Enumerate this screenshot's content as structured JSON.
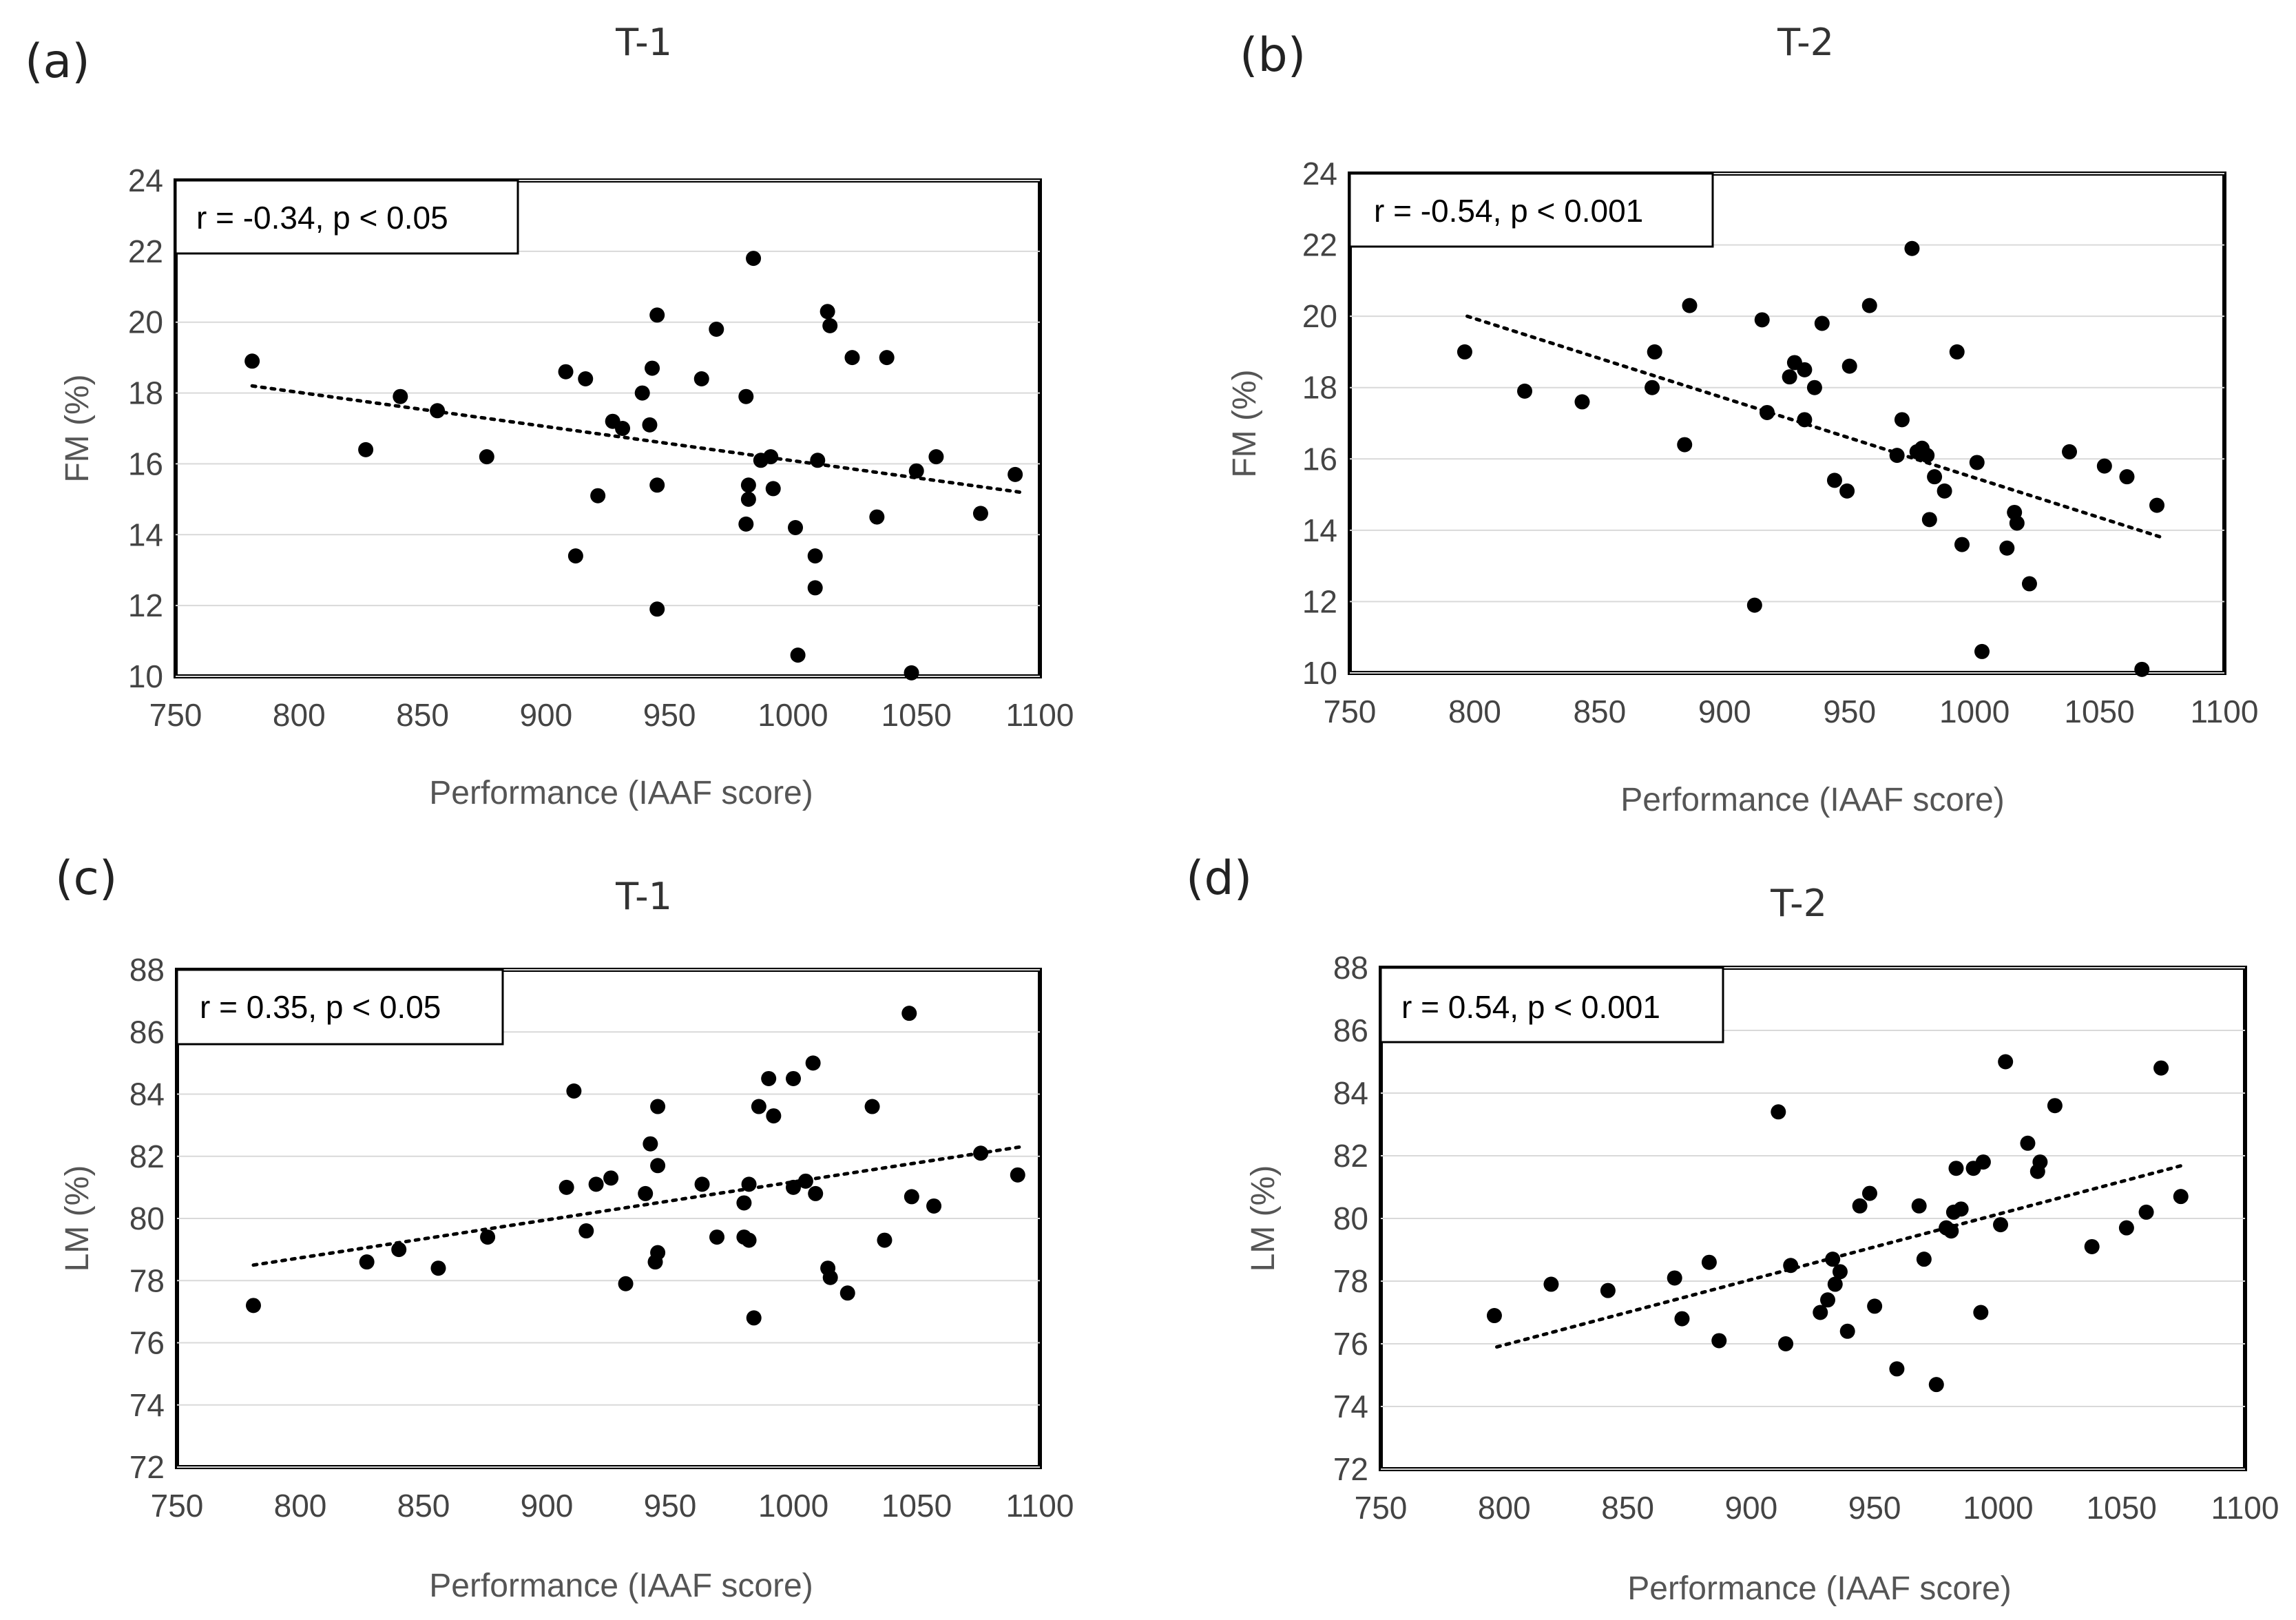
{
  "chart_data": [
    {
      "panel": "(a)",
      "type": "scatter",
      "title": "T-1",
      "xlabel": "Performance (IAAF score)",
      "ylabel": "FM (%)",
      "annotation": "r = -0.34, p < 0.05",
      "xlim": [
        750,
        1100
      ],
      "ylim": [
        10,
        24
      ],
      "xticks": [
        "750",
        "800",
        "850",
        "900",
        "950",
        "1000",
        "1050",
        "1100"
      ],
      "yticks": [
        "10",
        "12",
        "14",
        "16",
        "18",
        "20",
        "22",
        "24"
      ],
      "trendline": {
        "style": "dotted",
        "x": [
          781,
          1092
        ],
        "y": [
          18.2,
          15.2
        ]
      },
      "points": [
        [
          781,
          18.9
        ],
        [
          827,
          16.4
        ],
        [
          841,
          17.9
        ],
        [
          856,
          17.5
        ],
        [
          876,
          16.2
        ],
        [
          908,
          18.6
        ],
        [
          912,
          13.4
        ],
        [
          916,
          18.4
        ],
        [
          921,
          15.1
        ],
        [
          927,
          17.2
        ],
        [
          931,
          17.0
        ],
        [
          939,
          18.0
        ],
        [
          942,
          17.1
        ],
        [
          943,
          18.7
        ],
        [
          945,
          20.2
        ],
        [
          945,
          15.4
        ],
        [
          945,
          11.9
        ],
        [
          963,
          18.4
        ],
        [
          969,
          19.8
        ],
        [
          981,
          17.9
        ],
        [
          981,
          14.3
        ],
        [
          982,
          15.0
        ],
        [
          982,
          15.4
        ],
        [
          984,
          21.8
        ],
        [
          987,
          16.1
        ],
        [
          991,
          16.2
        ],
        [
          992,
          15.3
        ],
        [
          1001,
          14.2
        ],
        [
          1002,
          10.6
        ],
        [
          1009,
          13.4
        ],
        [
          1009,
          12.5
        ],
        [
          1010,
          16.1
        ],
        [
          1014,
          20.3
        ],
        [
          1015,
          19.9
        ],
        [
          1024,
          19.0
        ],
        [
          1034,
          14.5
        ],
        [
          1038,
          19.0
        ],
        [
          1048,
          10.1
        ],
        [
          1050,
          15.8
        ],
        [
          1058,
          16.2
        ],
        [
          1076,
          14.6
        ],
        [
          1090,
          15.7
        ]
      ]
    },
    {
      "panel": "(b)",
      "type": "scatter",
      "title": "T-2",
      "xlabel": "Performance (IAAF score)",
      "ylabel": "FM (%)",
      "annotation": "r = -0.54, p < 0.001",
      "xlim": [
        750,
        1100
      ],
      "ylim": [
        10,
        24
      ],
      "xticks": [
        "750",
        "800",
        "850",
        "900",
        "950",
        "1000",
        "1050",
        "1100"
      ],
      "yticks": [
        "10",
        "12",
        "14",
        "16",
        "18",
        "20",
        "22",
        "24"
      ],
      "trendline": {
        "style": "dotted",
        "x": [
          797,
          1075
        ],
        "y": [
          20.0,
          13.8
        ]
      },
      "points": [
        [
          796,
          19.0
        ],
        [
          820,
          17.9
        ],
        [
          843,
          17.6
        ],
        [
          871,
          18.0
        ],
        [
          872,
          19.0
        ],
        [
          884,
          16.4
        ],
        [
          886,
          20.3
        ],
        [
          912,
          11.9
        ],
        [
          915,
          19.9
        ],
        [
          917,
          17.3
        ],
        [
          926,
          18.3
        ],
        [
          928,
          18.7
        ],
        [
          932,
          17.1
        ],
        [
          932,
          18.5
        ],
        [
          936,
          18.0
        ],
        [
          939,
          19.8
        ],
        [
          944,
          15.4
        ],
        [
          949,
          15.1
        ],
        [
          950,
          18.6
        ],
        [
          958,
          20.3
        ],
        [
          969,
          16.1
        ],
        [
          971,
          17.1
        ],
        [
          975,
          21.9
        ],
        [
          977,
          16.2
        ],
        [
          979,
          16.3
        ],
        [
          981,
          16.1
        ],
        [
          982,
          14.3
        ],
        [
          984,
          15.5
        ],
        [
          988,
          15.1
        ],
        [
          993,
          19.0
        ],
        [
          995,
          13.6
        ],
        [
          1001,
          15.9
        ],
        [
          1003,
          10.6
        ],
        [
          1013,
          13.5
        ],
        [
          1016,
          14.5
        ],
        [
          1017,
          14.2
        ],
        [
          1022,
          12.5
        ],
        [
          1038,
          16.2
        ],
        [
          1052,
          15.8
        ],
        [
          1061,
          15.5
        ],
        [
          1067,
          10.1
        ],
        [
          1073,
          14.7
        ]
      ]
    },
    {
      "panel": "(c)",
      "type": "scatter",
      "title": "T-1",
      "xlabel": "Performance (IAAF score)",
      "ylabel": "LM (%)",
      "annotation": "r = 0.35, p < 0.05",
      "xlim": [
        750,
        1100
      ],
      "ylim": [
        72,
        88
      ],
      "xticks": [
        "750",
        "800",
        "850",
        "900",
        "950",
        "1000",
        "1050",
        "1100"
      ],
      "yticks": [
        "72",
        "74",
        "76",
        "78",
        "80",
        "82",
        "84",
        "86",
        "88"
      ],
      "trendline": {
        "style": "dotted",
        "x": [
          781,
          1092
        ],
        "y": [
          78.5,
          82.3
        ]
      },
      "points": [
        [
          781,
          77.2
        ],
        [
          827,
          78.6
        ],
        [
          840,
          79.0
        ],
        [
          856,
          78.4
        ],
        [
          876,
          79.4
        ],
        [
          908,
          81.0
        ],
        [
          911,
          84.1
        ],
        [
          916,
          79.6
        ],
        [
          920,
          81.1
        ],
        [
          926,
          81.3
        ],
        [
          932,
          77.9
        ],
        [
          940,
          80.8
        ],
        [
          942,
          82.4
        ],
        [
          944,
          78.6
        ],
        [
          945,
          83.6
        ],
        [
          945,
          81.7
        ],
        [
          945,
          78.9
        ],
        [
          963,
          81.1
        ],
        [
          969,
          79.4
        ],
        [
          980,
          80.5
        ],
        [
          980,
          79.4
        ],
        [
          982,
          81.1
        ],
        [
          982,
          79.3
        ],
        [
          984,
          76.8
        ],
        [
          986,
          83.6
        ],
        [
          990,
          84.5
        ],
        [
          992,
          83.3
        ],
        [
          1000,
          84.5
        ],
        [
          1000,
          81.0
        ],
        [
          1005,
          81.2
        ],
        [
          1008,
          85.0
        ],
        [
          1009,
          80.8
        ],
        [
          1014,
          78.4
        ],
        [
          1015,
          78.1
        ],
        [
          1022,
          77.6
        ],
        [
          1032,
          83.6
        ],
        [
          1037,
          79.3
        ],
        [
          1047,
          86.6
        ],
        [
          1048,
          80.7
        ],
        [
          1057,
          80.4
        ],
        [
          1076,
          82.1
        ],
        [
          1091,
          81.4
        ]
      ]
    },
    {
      "panel": "(d)",
      "type": "scatter",
      "title": "T-2",
      "xlabel": "Performance (IAAF score)",
      "ylabel": "LM (%)",
      "annotation": "r = 0.54, p < 0.001",
      "xlim": [
        750,
        1100
      ],
      "ylim": [
        72,
        88
      ],
      "xticks": [
        "750",
        "800",
        "850",
        "900",
        "950",
        "1000",
        "1050",
        "1100"
      ],
      "yticks": [
        "72",
        "74",
        "76",
        "78",
        "80",
        "82",
        "84",
        "86",
        "88"
      ],
      "trendline": {
        "style": "dotted",
        "x": [
          797,
          1075
        ],
        "y": [
          75.9,
          81.7
        ]
      },
      "points": [
        [
          796,
          76.9
        ],
        [
          819,
          77.9
        ],
        [
          842,
          77.7
        ],
        [
          869,
          78.1
        ],
        [
          872,
          76.8
        ],
        [
          883,
          78.6
        ],
        [
          887,
          76.1
        ],
        [
          911,
          83.4
        ],
        [
          914,
          76.0
        ],
        [
          916,
          78.5
        ],
        [
          928,
          77.0
        ],
        [
          931,
          77.4
        ],
        [
          933,
          78.7
        ],
        [
          934,
          77.9
        ],
        [
          936,
          78.3
        ],
        [
          939,
          76.4
        ],
        [
          944,
          80.4
        ],
        [
          948,
          80.8
        ],
        [
          950,
          77.2
        ],
        [
          959,
          75.2
        ],
        [
          968,
          80.4
        ],
        [
          970,
          78.7
        ],
        [
          975,
          74.7
        ],
        [
          979,
          79.7
        ],
        [
          981,
          79.6
        ],
        [
          982,
          80.2
        ],
        [
          983,
          81.6
        ],
        [
          985,
          80.3
        ],
        [
          990,
          81.6
        ],
        [
          993,
          77.0
        ],
        [
          994,
          81.8
        ],
        [
          1001,
          79.8
        ],
        [
          1003,
          85.0
        ],
        [
          1012,
          82.4
        ],
        [
          1016,
          81.5
        ],
        [
          1017,
          81.8
        ],
        [
          1023,
          83.6
        ],
        [
          1038,
          79.1
        ],
        [
          1052,
          79.7
        ],
        [
          1060,
          80.2
        ],
        [
          1066,
          84.8
        ],
        [
          1074,
          80.7
        ]
      ]
    }
  ]
}
